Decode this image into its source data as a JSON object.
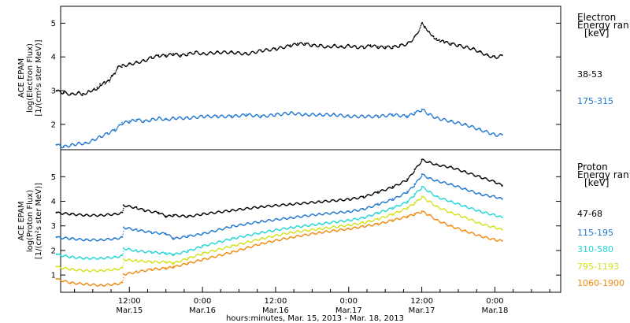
{
  "chart_data": [
    {
      "type": "scatter",
      "ylabel": [
        "ACE EPAM",
        "log(Electron Flux)",
        "[1/(cm²s ster MeV)]"
      ],
      "yticks": [
        2,
        3,
        4,
        5
      ],
      "ylim": [
        1.25,
        5.5
      ],
      "legend_title": [
        "Electron",
        "Energy ran",
        "[keV]"
      ],
      "series": [
        {
          "name": "38-53",
          "color": "#000000",
          "x": [
            0,
            0.05,
            0.1,
            0.15,
            0.18,
            0.22,
            0.26,
            0.28,
            0.3,
            0.33,
            0.36,
            0.38,
            0.4,
            0.42,
            0.45,
            0.5,
            0.55,
            0.6,
            0.65,
            0.7,
            0.75,
            0.8,
            0.85,
            0.9,
            0.95,
            1.0,
            1.1,
            1.2,
            1.3,
            1.4,
            1.5,
            1.6,
            1.65,
            1.7,
            1.75,
            1.8,
            1.85,
            1.9,
            1.95,
            2.0,
            2.05,
            2.1,
            2.15,
            2.2,
            2.25,
            2.3,
            2.35,
            2.4,
            2.45,
            2.5,
            2.52,
            2.55,
            2.58,
            2.6,
            2.62,
            2.65,
            2.7,
            2.75,
            2.8,
            2.85,
            2.9,
            2.95,
            3.0,
            3.05
          ],
          "values": [
            3.0,
            2.95,
            2.9,
            2.95,
            2.9,
            3.0,
            3.05,
            3.1,
            3.2,
            3.25,
            3.3,
            3.45,
            3.5,
            3.7,
            3.75,
            3.8,
            3.85,
            3.9,
            4.0,
            4.05,
            4.05,
            4.1,
            4.05,
            4.1,
            4.15,
            4.1,
            4.15,
            4.15,
            4.1,
            4.2,
            4.25,
            4.35,
            4.4,
            4.4,
            4.35,
            4.35,
            4.3,
            4.35,
            4.3,
            4.35,
            4.3,
            4.3,
            4.35,
            4.3,
            4.3,
            4.3,
            4.35,
            4.4,
            4.6,
            5.0,
            4.9,
            4.75,
            4.6,
            4.55,
            4.5,
            4.45,
            4.4,
            4.35,
            4.3,
            4.25,
            4.15,
            4.05,
            4.0,
            4.05
          ]
        },
        {
          "name": "175-315",
          "color": "#1f77d0",
          "x": [
            0,
            0.05,
            0.1,
            0.15,
            0.2,
            0.25,
            0.3,
            0.35,
            0.4,
            0.45,
            0.5,
            0.55,
            0.6,
            0.65,
            0.7,
            0.75,
            0.8,
            0.9,
            1.0,
            1.1,
            1.2,
            1.3,
            1.4,
            1.5,
            1.6,
            1.7,
            1.8,
            1.9,
            2.0,
            2.1,
            2.2,
            2.3,
            2.4,
            2.45,
            2.5,
            2.55,
            2.6,
            2.7,
            2.8,
            2.9,
            3.0,
            3.05
          ],
          "values": [
            1.4,
            1.35,
            1.4,
            1.45,
            1.45,
            1.55,
            1.65,
            1.75,
            1.85,
            2.05,
            2.1,
            2.15,
            2.1,
            2.15,
            2.2,
            2.15,
            2.2,
            2.2,
            2.25,
            2.25,
            2.25,
            2.3,
            2.25,
            2.3,
            2.35,
            2.3,
            2.3,
            2.3,
            2.25,
            2.25,
            2.25,
            2.3,
            2.25,
            2.35,
            2.45,
            2.3,
            2.2,
            2.1,
            2.0,
            1.85,
            1.7,
            1.7
          ]
        }
      ]
    },
    {
      "type": "scatter",
      "ylabel": [
        "ACE EPAM",
        "log(Proton Flux)",
        "[1/(cm²s ster MeV)]"
      ],
      "yticks": [
        1,
        2,
        3,
        4,
        5
      ],
      "ylim": [
        0.3,
        6.1
      ],
      "legend_title": [
        "Proton",
        "Energy ran",
        "[keV]"
      ],
      "series": [
        {
          "name": "47-68",
          "color": "#000000",
          "x": [
            0,
            0.1,
            0.2,
            0.3,
            0.4,
            0.45,
            0.46,
            0.55,
            0.6,
            0.7,
            0.75,
            0.8,
            0.9,
            1.0,
            1.2,
            1.4,
            1.6,
            1.8,
            2.0,
            2.1,
            2.2,
            2.3,
            2.4,
            2.45,
            2.5,
            2.55,
            2.6,
            2.7,
            2.8,
            2.9,
            3.0,
            3.05
          ],
          "values": [
            3.55,
            3.5,
            3.45,
            3.45,
            3.5,
            3.55,
            3.85,
            3.75,
            3.65,
            3.55,
            3.4,
            3.45,
            3.4,
            3.5,
            3.65,
            3.8,
            3.9,
            4.0,
            4.1,
            4.2,
            4.4,
            4.6,
            4.9,
            5.3,
            5.7,
            5.6,
            5.5,
            5.4,
            5.2,
            5.0,
            4.8,
            4.65
          ]
        },
        {
          "name": "115-195",
          "color": "#1f77d0",
          "x": [
            0,
            0.1,
            0.2,
            0.3,
            0.4,
            0.45,
            0.46,
            0.55,
            0.65,
            0.75,
            0.8,
            0.9,
            1.0,
            1.2,
            1.4,
            1.6,
            1.8,
            2.0,
            2.1,
            2.2,
            2.3,
            2.4,
            2.45,
            2.5,
            2.55,
            2.6,
            2.7,
            2.8,
            2.9,
            3.0,
            3.05
          ],
          "values": [
            2.55,
            2.5,
            2.45,
            2.45,
            2.5,
            2.55,
            2.95,
            2.85,
            2.75,
            2.7,
            2.5,
            2.6,
            2.7,
            3.0,
            3.2,
            3.35,
            3.5,
            3.6,
            3.7,
            3.9,
            4.1,
            4.4,
            4.7,
            5.1,
            4.95,
            4.85,
            4.7,
            4.5,
            4.3,
            4.2,
            4.1
          ]
        },
        {
          "name": "310-580",
          "color": "#22d6d6",
          "x": [
            0,
            0.1,
            0.2,
            0.3,
            0.4,
            0.45,
            0.46,
            0.55,
            0.65,
            0.75,
            0.8,
            0.9,
            1.0,
            1.2,
            1.4,
            1.6,
            1.8,
            2.0,
            2.1,
            2.2,
            2.3,
            2.4,
            2.45,
            2.5,
            2.55,
            2.6,
            2.7,
            2.8,
            2.9,
            3.0,
            3.05
          ],
          "values": [
            1.85,
            1.75,
            1.7,
            1.7,
            1.75,
            1.8,
            2.1,
            2.0,
            1.95,
            1.9,
            1.85,
            2.0,
            2.2,
            2.5,
            2.75,
            2.95,
            3.1,
            3.25,
            3.35,
            3.55,
            3.75,
            4.0,
            4.3,
            4.6,
            4.4,
            4.2,
            4.0,
            3.8,
            3.6,
            3.45,
            3.35
          ]
        },
        {
          "name": "795-1193",
          "color": "#d4e21c",
          "x": [
            0,
            0.1,
            0.2,
            0.3,
            0.4,
            0.45,
            0.46,
            0.55,
            0.65,
            0.75,
            0.8,
            0.9,
            1.0,
            1.2,
            1.4,
            1.6,
            1.8,
            2.0,
            2.1,
            2.2,
            2.3,
            2.4,
            2.45,
            2.5,
            2.55,
            2.6,
            2.7,
            2.8,
            2.9,
            3.0,
            3.05
          ],
          "values": [
            1.35,
            1.25,
            1.2,
            1.2,
            1.25,
            1.3,
            1.65,
            1.6,
            1.55,
            1.55,
            1.5,
            1.7,
            1.9,
            2.2,
            2.5,
            2.75,
            2.9,
            3.05,
            3.15,
            3.3,
            3.5,
            3.75,
            3.95,
            4.2,
            4.0,
            3.8,
            3.55,
            3.35,
            3.1,
            2.95,
            2.85
          ]
        },
        {
          "name": "1060-1900",
          "color": "#f08a10",
          "x": [
            0,
            0.1,
            0.2,
            0.3,
            0.4,
            0.45,
            0.46,
            0.55,
            0.65,
            0.75,
            0.8,
            0.9,
            1.0,
            1.2,
            1.4,
            1.6,
            1.8,
            2.0,
            2.1,
            2.2,
            2.3,
            2.4,
            2.45,
            2.5,
            2.55,
            2.6,
            2.7,
            2.8,
            2.9,
            3.0,
            3.05
          ],
          "values": [
            0.85,
            0.7,
            0.65,
            0.6,
            0.65,
            0.7,
            1.05,
            1.15,
            1.25,
            1.3,
            1.35,
            1.5,
            1.65,
            1.95,
            2.3,
            2.55,
            2.75,
            2.9,
            3.0,
            3.1,
            3.25,
            3.4,
            3.5,
            3.6,
            3.45,
            3.25,
            3.0,
            2.8,
            2.6,
            2.45,
            2.4
          ]
        }
      ]
    }
  ],
  "xaxis": {
    "unit": "days since Mar.15 00:00",
    "range": [
      0.03,
      3.45
    ],
    "ticks": [
      {
        "x": 0.5,
        "time": "12:00",
        "date": "Mar.15"
      },
      {
        "x": 1.0,
        "time": "0:00",
        "date": "Mar.16"
      },
      {
        "x": 1.5,
        "time": "12:00",
        "date": "Mar.16"
      },
      {
        "x": 2.0,
        "time": "0:00",
        "date": "Mar.17"
      },
      {
        "x": 2.5,
        "time": "12:00",
        "date": "Mar.17"
      },
      {
        "x": 3.0,
        "time": "0:00",
        "date": "Mar.18"
      }
    ],
    "title": "hours:minutes, Mar. 15, 2013 - Mar. 18, 2013"
  }
}
